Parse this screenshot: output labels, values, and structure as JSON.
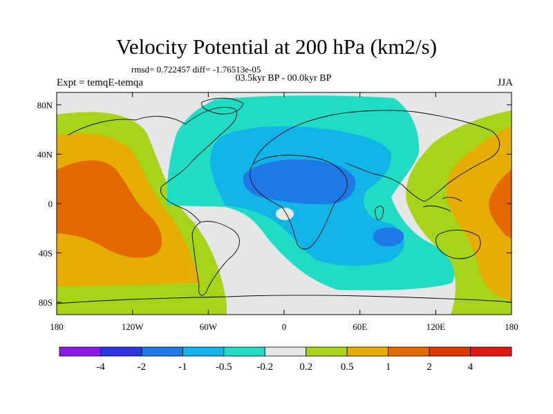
{
  "title": "Velocity Potential at 200 hPa (km2/s)",
  "stats": "rmsd= 0.722457 diff= -1.76513e-05",
  "period": "03.5kyr BP - 00.0kyr BP",
  "experiment": "Expt = temqE-temqa",
  "season": "JJA",
  "map": {
    "lon_ticks": [
      "180",
      "120W",
      "60W",
      "0",
      "60E",
      "120E",
      "180"
    ],
    "lat_ticks": [
      "80N",
      "40N",
      "0",
      "40S",
      "80S"
    ],
    "lon_values": [
      -180,
      -120,
      -60,
      0,
      60,
      120,
      180
    ],
    "lat_values": [
      80,
      40,
      0,
      -40,
      -80
    ],
    "lon_range": [
      -180,
      180
    ],
    "lat_range": [
      -90,
      90
    ]
  },
  "colorbar": {
    "labels": [
      "-4",
      "-2",
      "-1",
      "-0.5",
      "-0.2",
      "0.2",
      "0.5",
      "1",
      "2",
      "4"
    ],
    "colors": [
      "#8a1ae6",
      "#2c36e0",
      "#1e78e6",
      "#10b4e6",
      "#20dcc4",
      "#e6e6e6",
      "#a6d418",
      "#e6ae00",
      "#e46a00",
      "#dc3a00",
      "#e01a10"
    ]
  }
}
